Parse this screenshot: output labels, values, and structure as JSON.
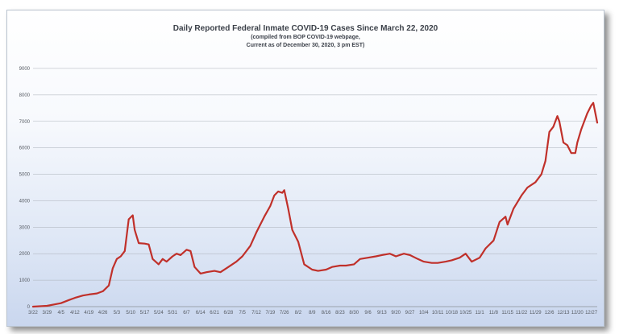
{
  "chart_data": {
    "type": "line",
    "title": "Daily Reported Federal Inmate COVID-19 Cases Since March 22, 2020",
    "subtitle_lines": [
      "(compiled from BOP COVID-19 webpage,",
      "Current as of December 30, 2020, 3 pm EST)"
    ],
    "xlabel": "",
    "ylabel": "",
    "ylim": [
      0,
      9000
    ],
    "yticks": [
      0,
      1000,
      2000,
      3000,
      4000,
      5000,
      6000,
      7000,
      8000,
      9000
    ],
    "xlim": [
      "3/22",
      "12/30"
    ],
    "xticks": [
      "3/22",
      "3/29",
      "4/5",
      "4/12",
      "4/19",
      "4/26",
      "5/3",
      "5/10",
      "5/17",
      "5/24",
      "5/31",
      "6/7",
      "6/14",
      "6/21",
      "6/28",
      "7/5",
      "7/12",
      "7/19",
      "7/26",
      "8/2",
      "8/9",
      "8/16",
      "8/23",
      "8/30",
      "9/6",
      "9/13",
      "9/20",
      "9/27",
      "10/4",
      "10/11",
      "10/18",
      "10/25",
      "11/1",
      "11/8",
      "11/15",
      "11/22",
      "11/29",
      "12/6",
      "12/13",
      "12/20",
      "12/27"
    ],
    "grid": true,
    "series": [
      {
        "color": "#c0302a",
        "points": [
          [
            "3/22",
            0
          ],
          [
            "3/29",
            30
          ],
          [
            "4/5",
            130
          ],
          [
            "4/9",
            250
          ],
          [
            "4/12",
            330
          ],
          [
            "4/16",
            420
          ],
          [
            "4/19",
            460
          ],
          [
            "4/23",
            500
          ],
          [
            "4/26",
            580
          ],
          [
            "4/29",
            800
          ],
          [
            "5/1",
            1450
          ],
          [
            "5/3",
            1800
          ],
          [
            "5/5",
            1900
          ],
          [
            "5/7",
            2100
          ],
          [
            "5/9",
            3300
          ],
          [
            "5/11",
            3450
          ],
          [
            "5/12",
            2900
          ],
          [
            "5/14",
            2400
          ],
          [
            "5/17",
            2380
          ],
          [
            "5/19",
            2350
          ],
          [
            "5/21",
            1800
          ],
          [
            "5/24",
            1600
          ],
          [
            "5/26",
            1800
          ],
          [
            "5/28",
            1700
          ],
          [
            "5/31",
            1900
          ],
          [
            "6/2",
            2000
          ],
          [
            "6/4",
            1950
          ],
          [
            "6/7",
            2150
          ],
          [
            "6/9",
            2100
          ],
          [
            "6/11",
            1500
          ],
          [
            "6/14",
            1250
          ],
          [
            "6/17",
            1300
          ],
          [
            "6/21",
            1350
          ],
          [
            "6/24",
            1300
          ],
          [
            "6/28",
            1500
          ],
          [
            "7/2",
            1700
          ],
          [
            "7/5",
            1900
          ],
          [
            "7/9",
            2300
          ],
          [
            "7/12",
            2800
          ],
          [
            "7/16",
            3400
          ],
          [
            "7/19",
            3800
          ],
          [
            "7/21",
            4200
          ],
          [
            "7/23",
            4350
          ],
          [
            "7/25",
            4300
          ],
          [
            "7/26",
            4400
          ],
          [
            "7/28",
            3700
          ],
          [
            "7/30",
            2900
          ],
          [
            "8/2",
            2450
          ],
          [
            "8/5",
            1600
          ],
          [
            "8/9",
            1400
          ],
          [
            "8/12",
            1350
          ],
          [
            "8/16",
            1400
          ],
          [
            "8/19",
            1500
          ],
          [
            "8/23",
            1550
          ],
          [
            "8/26",
            1550
          ],
          [
            "8/30",
            1600
          ],
          [
            "9/2",
            1800
          ],
          [
            "9/6",
            1850
          ],
          [
            "9/10",
            1900
          ],
          [
            "9/13",
            1950
          ],
          [
            "9/17",
            2000
          ],
          [
            "9/20",
            1900
          ],
          [
            "9/24",
            2000
          ],
          [
            "9/27",
            1950
          ],
          [
            "10/1",
            1800
          ],
          [
            "10/4",
            1700
          ],
          [
            "10/8",
            1650
          ],
          [
            "10/11",
            1650
          ],
          [
            "10/15",
            1700
          ],
          [
            "10/18",
            1750
          ],
          [
            "10/22",
            1850
          ],
          [
            "10/25",
            2000
          ],
          [
            "10/28",
            1700
          ],
          [
            "11/1",
            1850
          ],
          [
            "11/4",
            2200
          ],
          [
            "11/8",
            2500
          ],
          [
            "11/11",
            3200
          ],
          [
            "11/14",
            3400
          ],
          [
            "11/15",
            3100
          ],
          [
            "11/18",
            3700
          ],
          [
            "11/22",
            4200
          ],
          [
            "11/25",
            4500
          ],
          [
            "11/29",
            4700
          ],
          [
            "12/2",
            5000
          ],
          [
            "12/4",
            5500
          ],
          [
            "12/6",
            6600
          ],
          [
            "12/8",
            6800
          ],
          [
            "12/10",
            7200
          ],
          [
            "12/11",
            7000
          ],
          [
            "12/13",
            6200
          ],
          [
            "12/15",
            6100
          ],
          [
            "12/17",
            5800
          ],
          [
            "12/19",
            5800
          ],
          [
            "12/20",
            6200
          ],
          [
            "12/22",
            6700
          ],
          [
            "12/25",
            7300
          ],
          [
            "12/27",
            7600
          ],
          [
            "12/28",
            7700
          ],
          [
            "12/30",
            6950
          ]
        ]
      }
    ]
  }
}
